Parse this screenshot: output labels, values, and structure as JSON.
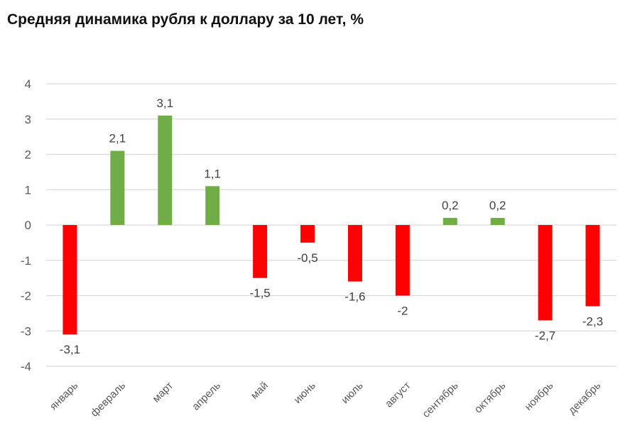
{
  "title": "Средняя динамика рубля к доллару за 10 лет, %",
  "colors": {
    "positive": "#70AD47",
    "negative": "#FF0000",
    "grid": "#D9D9D9"
  },
  "chart_data": {
    "type": "bar",
    "title": "Средняя динамика рубля к доллару за 10 лет, %",
    "xlabel": "",
    "ylabel": "",
    "ylim": [
      -4,
      4
    ],
    "yticks": [
      4,
      3,
      2,
      1,
      0,
      -1,
      -2,
      -3,
      -4
    ],
    "grid": true,
    "legend": "none",
    "categories": [
      "январь",
      "февраль",
      "март",
      "апрель",
      "май",
      "июнь",
      "июль",
      "август",
      "сентябрь",
      "октябрь",
      "ноябрь",
      "декабрь"
    ],
    "values": [
      -3.1,
      2.1,
      3.1,
      1.1,
      -1.5,
      -0.5,
      -1.6,
      -2,
      0.2,
      0.2,
      -2.7,
      -2.3
    ],
    "data_labels": [
      "-3,1",
      "2,1",
      "3,1",
      "1,1",
      "-1,5",
      "-0,5",
      "-1,6",
      "-2",
      "0,2",
      "0,2",
      "-2,7",
      "-2,3"
    ]
  }
}
